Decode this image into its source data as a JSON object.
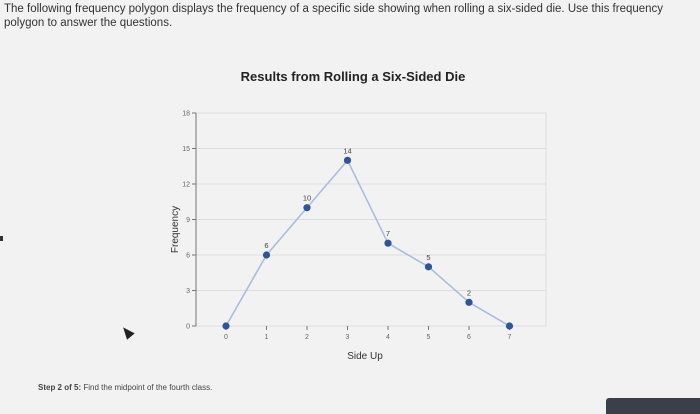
{
  "prompt": {
    "text": "The following frequency polygon displays the frequency of a specific side showing when rolling a six-sided die. Use this frequency polygon to answer the questions."
  },
  "step": {
    "label": "Step 2 of 5:",
    "text": "Find the midpoint of the fourth class."
  },
  "colors": {
    "line": "#a9bde0",
    "point": "#2f5597",
    "grid": "#dddddd",
    "axis": "#777777"
  },
  "chart_data": {
    "type": "line",
    "title": "Results from Rolling a Six-Sided Die",
    "xlabel": "Side Up",
    "ylabel": "Frequency",
    "x": [
      0,
      1,
      2,
      3,
      4,
      5,
      6,
      7
    ],
    "y": [
      0,
      6,
      10,
      14,
      7,
      5,
      2,
      0
    ],
    "data_labels": [
      "",
      "6",
      "10",
      "14",
      "7",
      "5",
      "2",
      ""
    ],
    "x_ticks": [
      0,
      1,
      2,
      3,
      4,
      5,
      6,
      7
    ],
    "y_ticks": [
      0,
      3,
      6,
      9,
      12,
      15,
      18
    ],
    "xlim": [
      -0.1,
      8
    ],
    "ylim": [
      0,
      18
    ],
    "grid": true
  }
}
